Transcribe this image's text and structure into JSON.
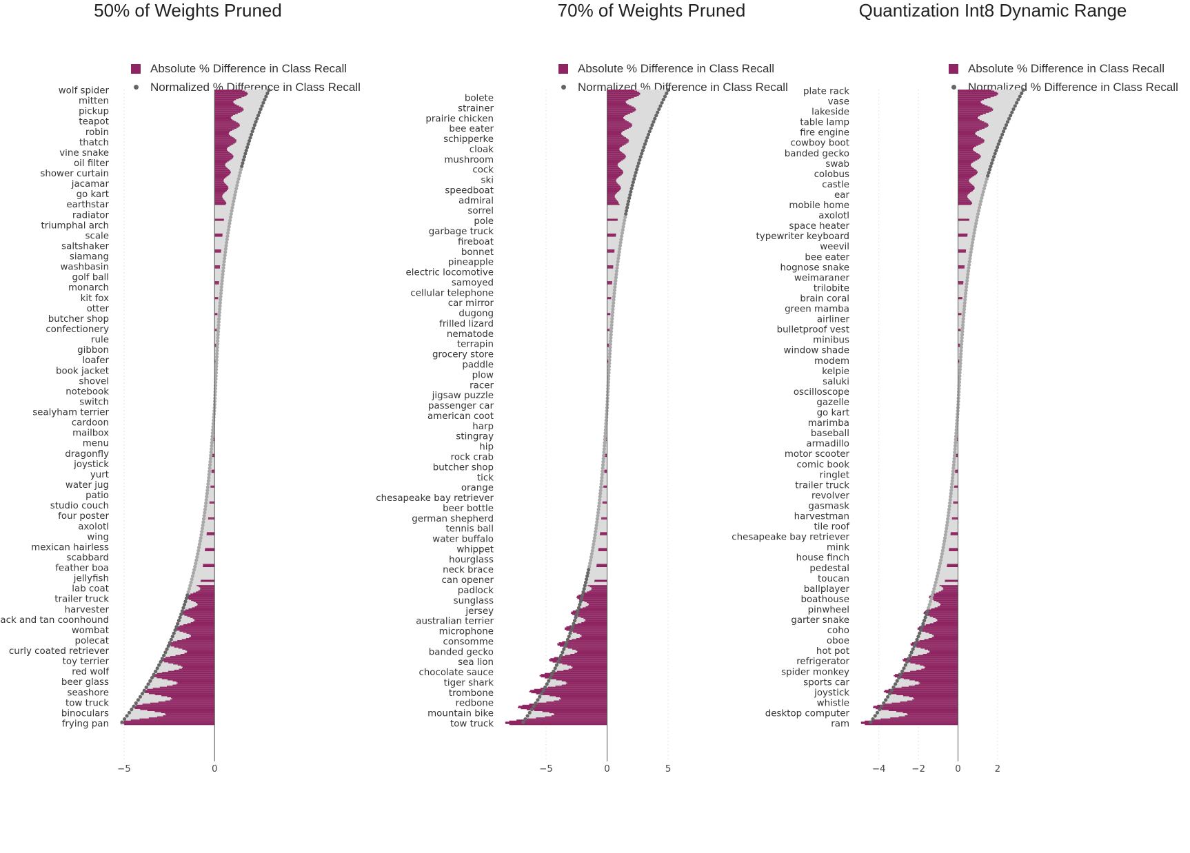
{
  "colors": {
    "absolute": "#8e2461",
    "absolute_light": "#b8477f",
    "normalized": "#666666",
    "background_bar": "#dcdcdc",
    "grid": "#e4e4e4",
    "axis": "#555555"
  },
  "chart_data": [
    {
      "type": "bar",
      "orientation": "horizontal",
      "title": "50% of Weights Pruned",
      "legend": {
        "placement": "top",
        "entries": [
          "Absolute % Difference in Class Recall",
          "Normalized % Difference in Class Recall"
        ]
      },
      "xlim": [
        -5.3,
        3.0
      ],
      "xticks": [
        -5,
        0
      ],
      "x_tick_labels": [
        "−5",
        "0"
      ],
      "grid": true,
      "labels_shown": [
        "wolf spider",
        "mitten",
        "pickup",
        "teapot",
        "robin",
        "thatch",
        "vine snake",
        "oil filter",
        "shower curtain",
        "jacamar",
        "go kart",
        "earthstar",
        "radiator",
        "triumphal arch",
        "scale",
        "saltshaker",
        "siamang",
        "washbasin",
        "golf ball",
        "monarch",
        "kit fox",
        "otter",
        "butcher shop",
        "confectionery",
        "rule",
        "gibbon",
        "loafer",
        "book jacket",
        "shovel",
        "notebook",
        "switch",
        "sealyham terrier",
        "cardoon",
        "mailbox",
        "menu",
        "dragonfly",
        "joystick",
        "yurt",
        "water jug",
        "patio",
        "studio couch",
        "four poster",
        "axolotl",
        "wing",
        "mexican hairless",
        "scabbard",
        "feather boa",
        "jellyfish",
        "lab coat",
        "trailer truck",
        "harvester",
        "black and tan coonhound",
        "wombat",
        "polecat",
        "curly coated retriever",
        "toy terrier",
        "red wolf",
        "beer glass",
        "seashore",
        "tow truck",
        "binoculars",
        "frying pan"
      ],
      "series": [
        {
          "name": "Absolute % Difference in Class Recall",
          "profile": {
            "type": "sorted-descending",
            "max": 1.9,
            "min": -5.3
          }
        },
        {
          "name": "Normalized % Difference in Class Recall",
          "profile": {
            "type": "sorted-descending",
            "max": 3.0,
            "min": -5.2
          }
        }
      ]
    },
    {
      "type": "bar",
      "orientation": "horizontal",
      "title": "70% of Weights Pruned",
      "legend": {
        "placement": "top",
        "entries": [
          "Absolute % Difference in Class Recall",
          "Normalized % Difference in Class Recall"
        ]
      },
      "xlim": [
        -8.5,
        5.5
      ],
      "xticks": [
        -5,
        0,
        5
      ],
      "x_tick_labels": [
        "−5",
        "0",
        "5"
      ],
      "grid": true,
      "labels_shown": [
        "bolete",
        "strainer",
        "prairie chicken",
        "bee eater",
        "schipperke",
        "cloak",
        "mushroom",
        "cock",
        "ski",
        "speedboat",
        "admiral",
        "sorrel",
        "pole",
        "garbage truck",
        "fireboat",
        "bonnet",
        "pineapple",
        "electric locomotive",
        "samoyed",
        "cellular telephone",
        "car mirror",
        "dugong",
        "frilled lizard",
        "nematode",
        "terrapin",
        "grocery store",
        "paddle",
        "plow",
        "racer",
        "jigsaw puzzle",
        "passenger car",
        "american coot",
        "harp",
        "stingray",
        "hip",
        "rock crab",
        "butcher shop",
        "tick",
        "orange",
        "chesapeake bay retriever",
        "beer bottle",
        "german shepherd",
        "tennis ball",
        "water buffalo",
        "whippet",
        "hourglass",
        "neck brace",
        "can opener",
        "padlock",
        "sunglass",
        "jersey",
        "australian terrier",
        "microphone",
        "consomme",
        "banded gecko",
        "sea lion",
        "chocolate sauce",
        "tiger shark",
        "trombone",
        "redbone",
        "mountain bike",
        "tow truck"
      ],
      "series": [
        {
          "name": "Absolute % Difference in Class Recall",
          "profile": {
            "type": "sorted-descending",
            "max": 2.8,
            "min": -8.5
          }
        },
        {
          "name": "Normalized % Difference in Class Recall",
          "profile": {
            "type": "sorted-descending",
            "max": 5.0,
            "min": -7.0
          }
        }
      ]
    },
    {
      "type": "bar",
      "orientation": "horizontal",
      "title": "Quantization Int8 Dynamic Range",
      "legend": {
        "placement": "top",
        "entries": [
          "Absolute % Difference in Class Recall",
          "Normalized % Difference in Class Recall"
        ]
      },
      "xlim": [
        -5.0,
        3.5
      ],
      "xticks": [
        -4,
        -2,
        0,
        2
      ],
      "x_tick_labels": [
        "−4",
        "−2",
        "0",
        "2"
      ],
      "grid": true,
      "labels_shown": [
        "plate rack",
        "vase",
        "lakeside",
        "table lamp",
        "fire engine",
        "cowboy boot",
        "banded gecko",
        "swab",
        "colobus",
        "castle",
        "ear",
        "mobile home",
        "axolotl",
        "space heater",
        "typewriter keyboard",
        "weevil",
        "bee eater",
        "hognose snake",
        "weimaraner",
        "trilobite",
        "brain coral",
        "green mamba",
        "airliner",
        "bulletproof vest",
        "minibus",
        "window shade",
        "modem",
        "kelpie",
        "saluki",
        "oscilloscope",
        "gazelle",
        "go kart",
        "marimba",
        "baseball",
        "armadillo",
        "motor scooter",
        "comic book",
        "ringlet",
        "trailer truck",
        "revolver",
        "gasmask",
        "harvestman",
        "tile roof",
        "chesapeake bay retriever",
        "mink",
        "house finch",
        "pedestal",
        "toucan",
        "ballplayer",
        "boathouse",
        "pinwheel",
        "garter snake",
        "coho",
        "oboe",
        "hot pot",
        "refrigerator",
        "spider monkey",
        "sports car",
        "joystick",
        "whistle",
        "desktop computer",
        "ram"
      ],
      "series": [
        {
          "name": "Absolute % Difference in Class Recall",
          "profile": {
            "type": "sorted-descending",
            "max": 2.1,
            "min": -5.0
          }
        },
        {
          "name": "Normalized % Difference in Class Recall",
          "profile": {
            "type": "sorted-descending",
            "max": 3.3,
            "min": -4.5
          }
        }
      ]
    }
  ]
}
